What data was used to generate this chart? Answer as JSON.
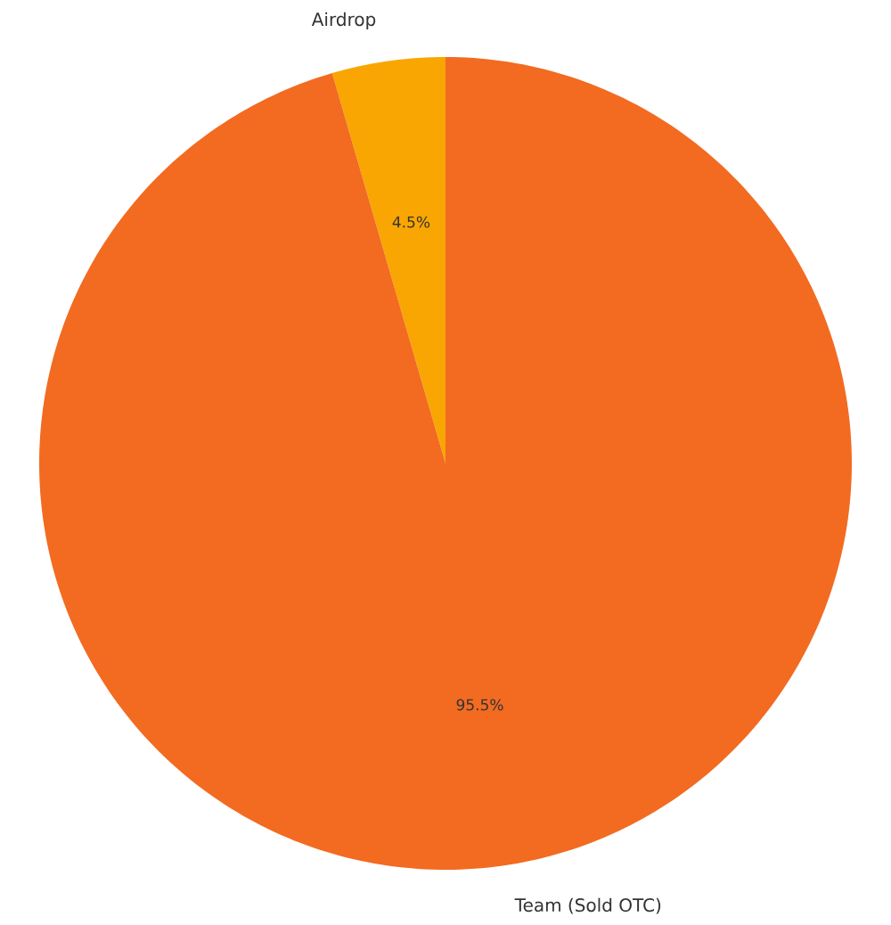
{
  "chart_data": {
    "type": "pie",
    "categories": [
      "Airdrop",
      "Team (Sold OTC)"
    ],
    "values": [
      4.5,
      95.5
    ],
    "colors": [
      "#f9a602",
      "#f26b21"
    ],
    "value_labels": [
      "4.5%",
      "95.5%"
    ]
  }
}
